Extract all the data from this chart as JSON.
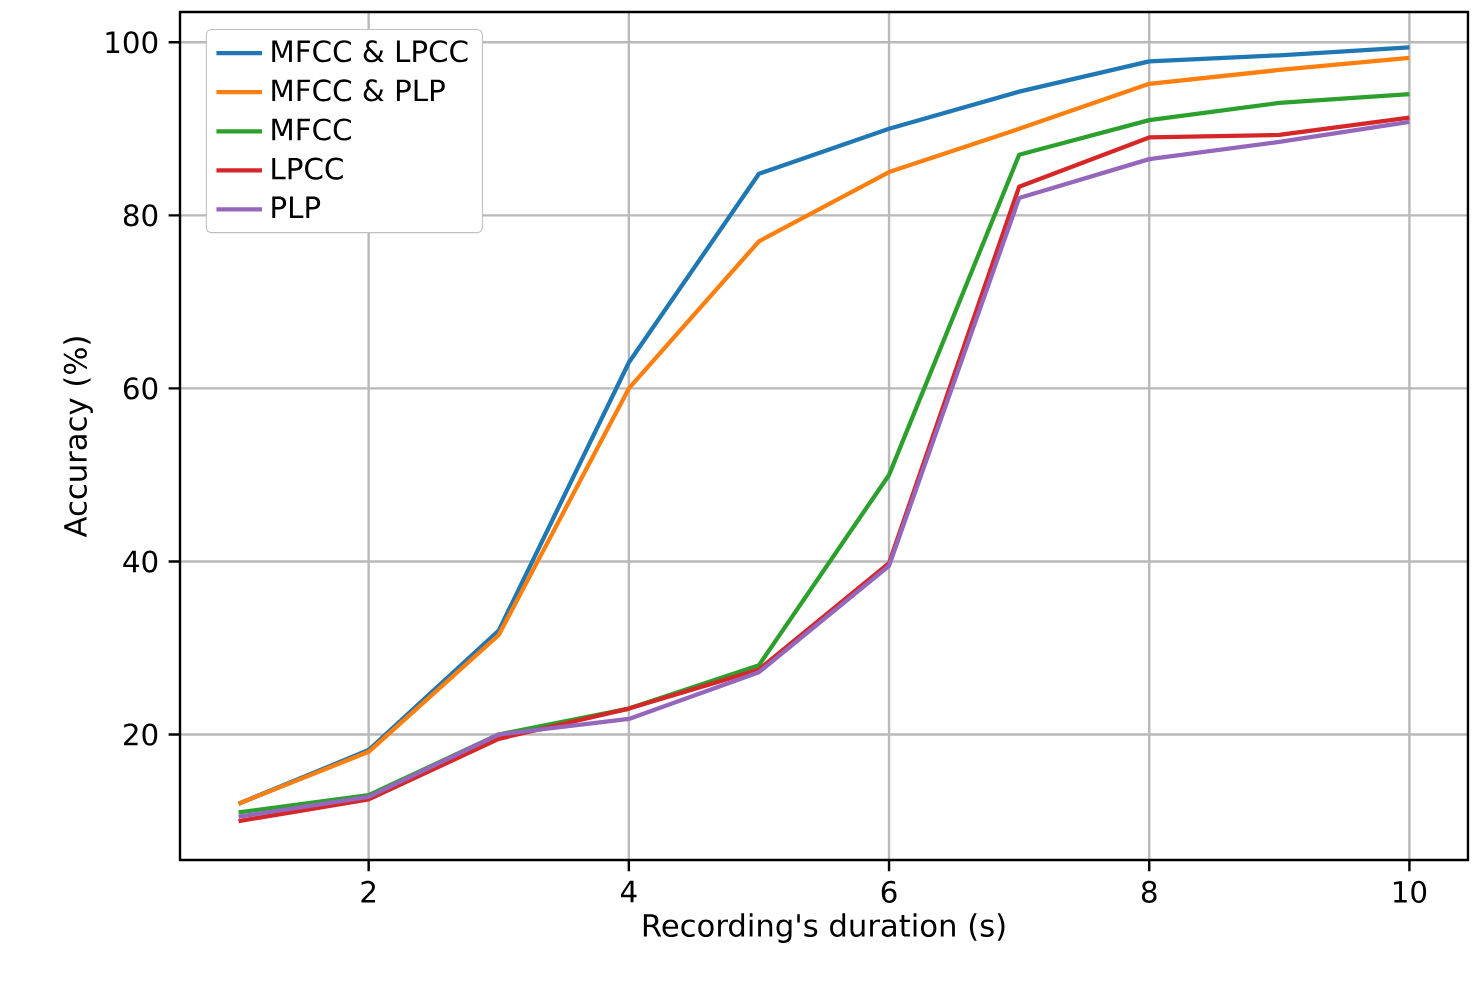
{
  "chart_data": {
    "type": "line",
    "xlabel": "Recording's duration (s)",
    "ylabel": "Accuracy (%)",
    "x": [
      1,
      2,
      3,
      4,
      5,
      6,
      7,
      8,
      9,
      10
    ],
    "series": [
      {
        "name": "MFCC & LPCC",
        "color": "#1f77b4",
        "values": [
          12,
          18.2,
          32,
          63,
          84.8,
          90,
          94.3,
          97.8,
          98.5,
          99.4
        ]
      },
      {
        "name": "MFCC & PLP",
        "color": "#ff7f0e",
        "values": [
          12,
          18,
          31.5,
          60,
          77,
          85,
          90,
          95.2,
          96.8,
          98.2
        ]
      },
      {
        "name": "MFCC",
        "color": "#2ca02c",
        "values": [
          11,
          13,
          20,
          23,
          28,
          50,
          87,
          91,
          93,
          94
        ]
      },
      {
        "name": "LPCC",
        "color": "#d62728",
        "values": [
          10,
          12.5,
          19.5,
          23,
          27.5,
          39.8,
          83.3,
          89,
          89.3,
          91.3
        ]
      },
      {
        "name": "PLP",
        "color": "#9467bd",
        "values": [
          10.5,
          12.8,
          20,
          21.8,
          27.2,
          39.5,
          82,
          86.5,
          88.5,
          90.8
        ]
      }
    ],
    "xlim": [
      0.55,
      10.45
    ],
    "ylim": [
      5.5,
      103.5
    ],
    "xticks": [
      2,
      4,
      6,
      8,
      10
    ],
    "yticks": [
      20,
      40,
      60,
      80,
      100
    ],
    "grid": true,
    "legend": "top left",
    "marker": "none",
    "line_style": "solid"
  }
}
